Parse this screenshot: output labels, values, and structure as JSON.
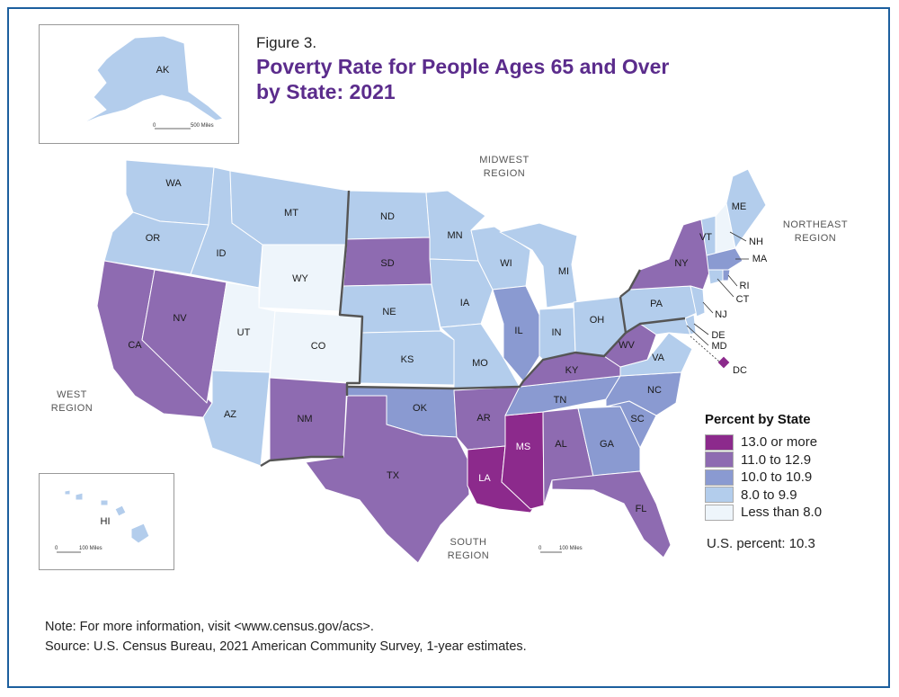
{
  "figure": {
    "label": "Figure 3.",
    "title_line1": "Poverty Rate for People Ages 65 and Over",
    "title_line2": "by State: 2021"
  },
  "colors": {
    "c13plus": "#8c2a8c",
    "c11": "#8e6bb1",
    "c10": "#8a9ad1",
    "c8": "#b3cdec",
    "clt8": "#eef5fb",
    "border": "#ffffff",
    "region_border": "#555555",
    "title": "#5b2c8c",
    "frame": "#1c5f9e"
  },
  "legend": {
    "title": "Percent by State",
    "items": [
      {
        "label": "13.0 or more",
        "color": "#8c2a8c"
      },
      {
        "label": "11.0 to 12.9",
        "color": "#8e6bb1"
      },
      {
        "label": "10.0 to 10.9",
        "color": "#8a9ad1"
      },
      {
        "label": "8.0 to 9.9",
        "color": "#b3cdec"
      },
      {
        "label": "Less than 8.0",
        "color": "#eef5fb"
      }
    ]
  },
  "us_percent": "U.S. percent: 10.3",
  "regions": {
    "midwest": [
      "MIDWEST",
      "REGION"
    ],
    "northeast": [
      "NORTHEAST",
      "REGION"
    ],
    "west": [
      "WEST",
      "REGION"
    ],
    "south": [
      "SOUTH",
      "REGION"
    ]
  },
  "scales": {
    "alaska": "500 Miles",
    "hawaii": "100 Miles",
    "main": "100 Miles",
    "zero": "0"
  },
  "states": {
    "WA": {
      "label": "WA",
      "category": "8.0 to 9.9"
    },
    "OR": {
      "label": "OR",
      "category": "8.0 to 9.9"
    },
    "CA": {
      "label": "CA",
      "category": "11.0 to 12.9"
    },
    "NV": {
      "label": "NV",
      "category": "11.0 to 12.9"
    },
    "ID": {
      "label": "ID",
      "category": "8.0 to 9.9"
    },
    "MT": {
      "label": "MT",
      "category": "8.0 to 9.9"
    },
    "WY": {
      "label": "WY",
      "category": "Less than 8.0"
    },
    "UT": {
      "label": "UT",
      "category": "Less than 8.0"
    },
    "CO": {
      "label": "CO",
      "category": "Less than 8.0"
    },
    "AZ": {
      "label": "AZ",
      "category": "8.0 to 9.9"
    },
    "NM": {
      "label": "NM",
      "category": "11.0 to 12.9"
    },
    "ND": {
      "label": "ND",
      "category": "8.0 to 9.9"
    },
    "SD": {
      "label": "SD",
      "category": "11.0 to 12.9"
    },
    "NE": {
      "label": "NE",
      "category": "8.0 to 9.9"
    },
    "KS": {
      "label": "KS",
      "category": "8.0 to 9.9"
    },
    "OK": {
      "label": "OK",
      "category": "10.0 to 10.9"
    },
    "TX": {
      "label": "TX",
      "category": "11.0 to 12.9"
    },
    "MN": {
      "label": "MN",
      "category": "8.0 to 9.9"
    },
    "IA": {
      "label": "IA",
      "category": "8.0 to 9.9"
    },
    "MO": {
      "label": "MO",
      "category": "8.0 to 9.9"
    },
    "AR": {
      "label": "AR",
      "category": "11.0 to 12.9"
    },
    "LA": {
      "label": "LA",
      "category": "13.0 or more"
    },
    "WI": {
      "label": "WI",
      "category": "8.0 to 9.9"
    },
    "IL": {
      "label": "IL",
      "category": "10.0 to 10.9"
    },
    "MI": {
      "label": "MI",
      "category": "8.0 to 9.9"
    },
    "IN": {
      "label": "IN",
      "category": "8.0 to 9.9"
    },
    "OH": {
      "label": "OH",
      "category": "8.0 to 9.9"
    },
    "KY": {
      "label": "KY",
      "category": "11.0 to 12.9"
    },
    "TN": {
      "label": "TN",
      "category": "10.0 to 10.9"
    },
    "MS": {
      "label": "MS",
      "category": "13.0 or more"
    },
    "AL": {
      "label": "AL",
      "category": "11.0 to 12.9"
    },
    "GA": {
      "label": "GA",
      "category": "10.0 to 10.9"
    },
    "FL": {
      "label": "FL",
      "category": "11.0 to 12.9"
    },
    "SC": {
      "label": "SC",
      "category": "10.0 to 10.9"
    },
    "NC": {
      "label": "NC",
      "category": "10.0 to 10.9"
    },
    "VA": {
      "label": "VA",
      "category": "8.0 to 9.9"
    },
    "WV": {
      "label": "WV",
      "category": "11.0 to 12.9"
    },
    "PA": {
      "label": "PA",
      "category": "8.0 to 9.9"
    },
    "NY": {
      "label": "NY",
      "category": "11.0 to 12.9"
    },
    "VT": {
      "label": "VT",
      "category": "8.0 to 9.9"
    },
    "NH": {
      "label": "NH",
      "category": "Less than 8.0"
    },
    "ME": {
      "label": "ME",
      "category": "8.0 to 9.9"
    },
    "MA": {
      "label": "MA",
      "category": "10.0 to 10.9"
    },
    "RI": {
      "label": "RI",
      "category": "10.0 to 10.9"
    },
    "CT": {
      "label": "CT",
      "category": "8.0 to 9.9"
    },
    "NJ": {
      "label": "NJ",
      "category": "8.0 to 9.9"
    },
    "DE": {
      "label": "DE",
      "category": "8.0 to 9.9"
    },
    "MD": {
      "label": "MD",
      "category": "8.0 to 9.9"
    },
    "DC": {
      "label": "DC",
      "category": "13.0 or more"
    },
    "AK": {
      "label": "AK",
      "category": "8.0 to 9.9"
    },
    "HI": {
      "label": "HI",
      "category": "8.0 to 9.9"
    }
  },
  "note": {
    "line1": "Note: For more information, visit <www.census.gov/acs>.",
    "line2": "Source: U.S. Census Bureau, 2021 American Community Survey, 1-year estimates."
  }
}
